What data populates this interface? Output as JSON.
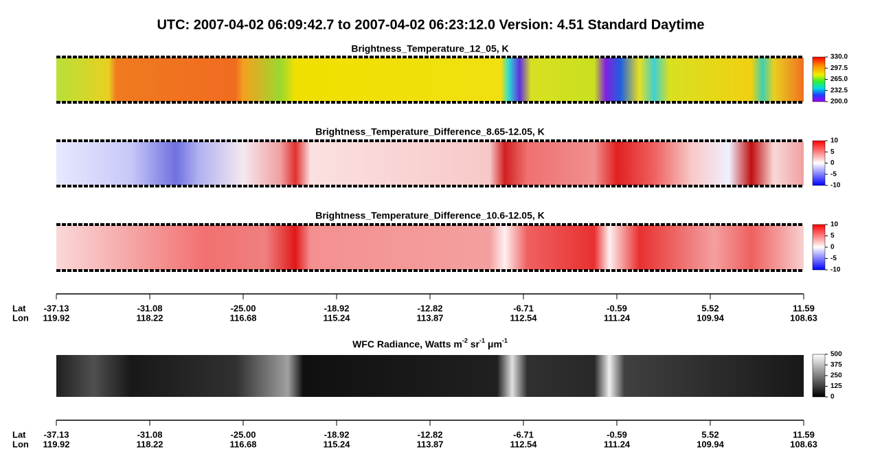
{
  "title": "UTC:  2007-04-02   06:09:42.7  to  2007-04-02   06:23:12.0    Version: 4.51  Standard Daytime",
  "panels": [
    {
      "title": "Brightness_Temperature_12_05, K",
      "colorbar_ticks": [
        "330.0",
        "297.5",
        "265.0",
        "232.5",
        "200.0"
      ]
    },
    {
      "title": "Brightness_Temperature_Difference_8.65-12.05, K",
      "colorbar_ticks": [
        "10",
        "5",
        "0",
        "-5",
        "-10"
      ]
    },
    {
      "title": "Brightness_Temperature_Difference_10.6-12.05, K",
      "colorbar_ticks": [
        "10",
        "5",
        "0",
        "-5",
        "-10"
      ]
    },
    {
      "title_parts": [
        "WFC Radiance, Watts m",
        "-2",
        " sr",
        "-1",
        " μm",
        "-1"
      ],
      "colorbar_ticks": [
        "500",
        "375",
        "250",
        "125",
        "0"
      ]
    }
  ],
  "axes": [
    {
      "lat_label": "Lat",
      "lon_label": "Lon",
      "lat": [
        "-37.13",
        "-31.08",
        "-25.00",
        "-18.92",
        "-12.82",
        "-6.71",
        "-0.59",
        "5.52",
        "11.59"
      ],
      "lon": [
        "119.92",
        "118.22",
        "116.68",
        "115.24",
        "113.87",
        "112.54",
        "111.24",
        "109.94",
        "108.63"
      ]
    },
    {
      "lat_label": "Lat",
      "lon_label": "Lon",
      "lat": [
        "-37.13",
        "-31.08",
        "-25.00",
        "-18.92",
        "-12.82",
        "-6.71",
        "-0.59",
        "5.52",
        "11.59"
      ],
      "lon": [
        "119.92",
        "118.22",
        "116.68",
        "115.24",
        "113.87",
        "112.54",
        "111.24",
        "109.94",
        "108.63"
      ]
    }
  ]
}
